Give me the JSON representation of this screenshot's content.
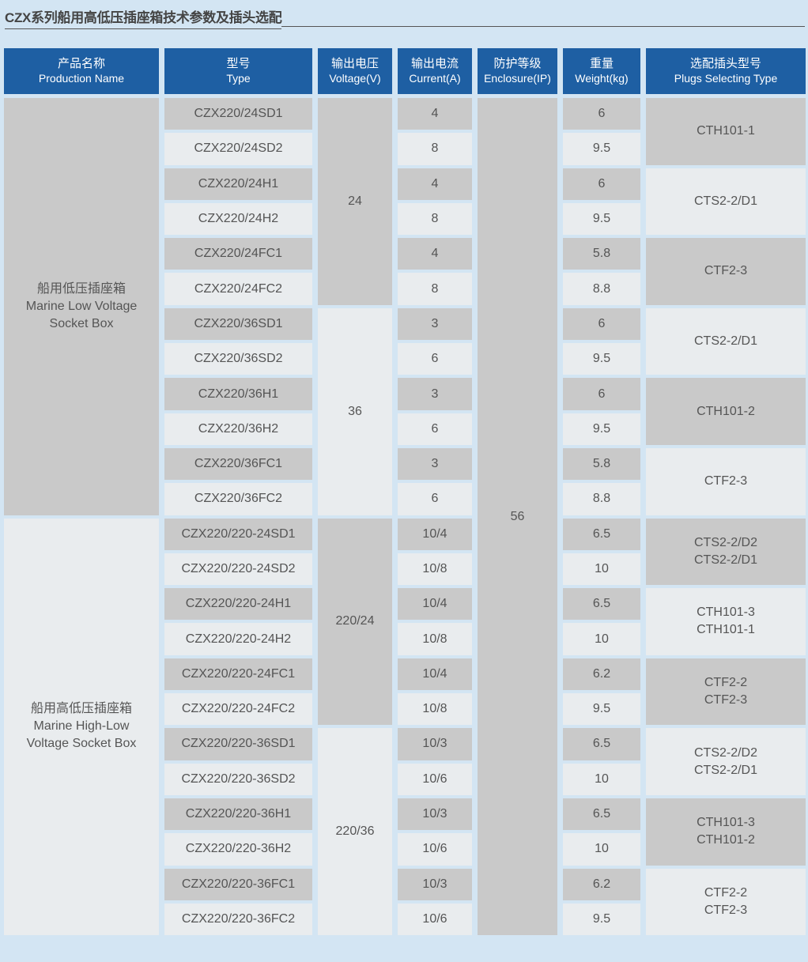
{
  "title": "CZX系列船用高低压插座箱技术参数及插头选配",
  "colors": {
    "header": "#1e5fa3",
    "background": "#d3e5f3",
    "cell_dark": "#c9c9c9",
    "cell_light": "#e9ecee"
  },
  "headers": [
    {
      "zh": "产品名称",
      "en": "Production Name"
    },
    {
      "zh": "型号",
      "en": "Type"
    },
    {
      "zh": "输出电压",
      "en": "Voltage(V)"
    },
    {
      "zh": "输出电流",
      "en": "Current(A)"
    },
    {
      "zh": "防护等级",
      "en": "Enclosure(IP)"
    },
    {
      "zh": "重量",
      "en": "Weight(kg)"
    },
    {
      "zh": "选配插头型号",
      "en": "Plugs Selecting Type"
    }
  ],
  "products": [
    {
      "zh": "船用低压插座箱",
      "en": [
        "Marine Low Voltage",
        "Socket Box"
      ],
      "rows": 12
    },
    {
      "zh": "船用高低压插座箱",
      "en": [
        "Marine High-Low",
        "Voltage Socket Box"
      ],
      "rows": 12
    }
  ],
  "types": [
    "CZX220/24SD1",
    "CZX220/24SD2",
    "CZX220/24H1",
    "CZX220/24H2",
    "CZX220/24FC1",
    "CZX220/24FC2",
    "CZX220/36SD1",
    "CZX220/36SD2",
    "CZX220/36H1",
    "CZX220/36H2",
    "CZX220/36FC1",
    "CZX220/36FC2",
    "CZX220/220-24SD1",
    "CZX220/220-24SD2",
    "CZX220/220-24H1",
    "CZX220/220-24H2",
    "CZX220/220-24FC1",
    "CZX220/220-24FC2",
    "CZX220/220-36SD1",
    "CZX220/220-36SD2",
    "CZX220/220-36H1",
    "CZX220/220-36H2",
    "CZX220/220-36FC1",
    "CZX220/220-36FC2"
  ],
  "voltages": [
    {
      "value": "24",
      "rows": 6
    },
    {
      "value": "36",
      "rows": 6
    },
    {
      "value": "220/24",
      "rows": 6
    },
    {
      "value": "220/36",
      "rows": 6
    }
  ],
  "currents": [
    "4",
    "8",
    "4",
    "8",
    "4",
    "8",
    "3",
    "6",
    "3",
    "6",
    "3",
    "6",
    "10/4",
    "10/8",
    "10/4",
    "10/8",
    "10/4",
    "10/8",
    "10/3",
    "10/6",
    "10/3",
    "10/6",
    "10/3",
    "10/6"
  ],
  "enclosure": "56",
  "weights": [
    "6",
    "9.5",
    "6",
    "9.5",
    "5.8",
    "8.8",
    "6",
    "9.5",
    "6",
    "9.5",
    "5.8",
    "8.8",
    "6.5",
    "10",
    "6.5",
    "10",
    "6.2",
    "9.5",
    "6.5",
    "10",
    "6.5",
    "10",
    "6.2",
    "9.5"
  ],
  "plugs": [
    [
      "CTH101-1"
    ],
    [
      "CTS2-2/D1"
    ],
    [
      "CTF2-3"
    ],
    [
      "CTS2-2/D1"
    ],
    [
      "CTH101-2"
    ],
    [
      "CTF2-3"
    ],
    [
      "CTS2-2/D2",
      "CTS2-2/D1"
    ],
    [
      "CTH101-3",
      "CTH101-1"
    ],
    [
      "CTF2-2",
      "CTF2-3"
    ],
    [
      "CTS2-2/D2",
      "CTS2-2/D1"
    ],
    [
      "CTH101-3",
      "CTH101-2"
    ],
    [
      "CTF2-2",
      "CTF2-3"
    ]
  ]
}
